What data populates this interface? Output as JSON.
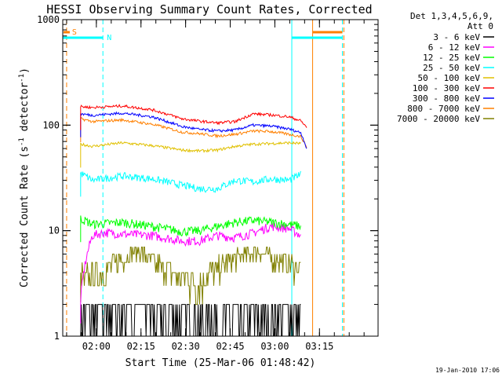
{
  "chart_data": {
    "type": "line",
    "title": "HESSI Observing Summary Count Rates, Corrected",
    "xlabel": "Start Time (25-Mar-06 01:48:42)",
    "ylabel": "Corrected Count Rate (s⁻¹ detector⁻¹)",
    "yscale": "log",
    "ylim": [
      1,
      1000
    ],
    "xlim_min": [
      0,
      106
    ],
    "y_ticks": [
      1,
      10,
      100,
      1000
    ],
    "y_tick_labels": [
      "1",
      "10",
      "100",
      "1000"
    ],
    "x_ticks": [
      "02:00",
      "02:15",
      "02:30",
      "02:45",
      "03:00",
      "03:15"
    ],
    "x_tick_min": [
      11.3,
      26.3,
      41.3,
      56.3,
      71.3,
      86.3
    ],
    "legend_header": [
      "Det 1,3,4,5,6,9,",
      "Att 0"
    ],
    "legend_position": "right",
    "series": [
      {
        "name": "3 - 6 keV",
        "color": "#000000",
        "min": [
          6,
          10,
          20,
          30,
          40,
          50,
          60,
          65,
          70,
          75,
          80
        ],
        "values": [
          1.3,
          1.6,
          1.5,
          1.7,
          1.3,
          1.2,
          1.2,
          1.6,
          1.5,
          1.6,
          1.4
        ]
      },
      {
        "name": "6 - 12 keV",
        "color": "#ff00ff",
        "min": [
          6,
          10,
          14,
          20,
          30,
          40,
          46,
          52,
          58,
          64,
          70,
          76,
          80
        ],
        "values": [
          2.2,
          9.0,
          9.6,
          9.3,
          9.0,
          8.0,
          8.0,
          9.0,
          8.6,
          9.5,
          11.0,
          10.5,
          9.0
        ]
      },
      {
        "name": "12 - 25 keV",
        "color": "#00ff00",
        "min": [
          6,
          10,
          20,
          30,
          40,
          46,
          52,
          58,
          64,
          70,
          76,
          80
        ],
        "values": [
          13.0,
          11.5,
          12.0,
          11.0,
          9.8,
          10.0,
          11.0,
          12.0,
          12.5,
          12.0,
          11.5,
          11.0
        ]
      },
      {
        "name": "25 - 50 keV",
        "color": "#00ffff",
        "min": [
          6,
          10,
          20,
          30,
          40,
          46,
          52,
          58,
          64,
          70,
          76,
          80
        ],
        "values": [
          35,
          30,
          33,
          31,
          27,
          25,
          25,
          30,
          29,
          31,
          30,
          34
        ]
      },
      {
        "name": "50 - 100 keV",
        "color": "#e0c000",
        "min": [
          6,
          10,
          20,
          30,
          40,
          46,
          52,
          58,
          64,
          70,
          76,
          80
        ],
        "values": [
          66,
          63,
          68,
          64,
          58,
          57,
          58,
          63,
          66,
          67,
          68,
          67
        ]
      },
      {
        "name": "100 - 300 keV",
        "color": "#ff0000",
        "min": [
          6,
          10,
          20,
          30,
          40,
          46,
          52,
          58,
          64,
          70,
          76,
          80,
          82
        ],
        "values": [
          150,
          147,
          152,
          140,
          115,
          109,
          105,
          108,
          128,
          125,
          120,
          110,
          95
        ]
      },
      {
        "name": "300 - 800 keV",
        "color": "#0000ff",
        "min": [
          6,
          10,
          20,
          30,
          40,
          46,
          52,
          58,
          64,
          70,
          76,
          80,
          82
        ],
        "values": [
          128,
          124,
          130,
          120,
          97,
          91,
          88,
          90,
          100,
          98,
          92,
          85,
          60
        ]
      },
      {
        "name": "800 - 7000 keV",
        "color": "#ff8000",
        "min": [
          6,
          10,
          20,
          30,
          40,
          46,
          52,
          58,
          64,
          70,
          76,
          80,
          82
        ],
        "values": [
          115,
          108,
          112,
          102,
          86,
          83,
          79,
          82,
          88,
          87,
          82,
          78,
          62
        ]
      },
      {
        "name": "7000 - 20000 keV",
        "color": "#808000",
        "min": [
          6,
          10,
          14,
          20,
          26,
          30,
          36,
          40,
          46,
          52,
          58,
          62,
          64,
          70,
          74,
          80
        ],
        "values": [
          3.5,
          3.6,
          4.2,
          5.5,
          6.5,
          5.0,
          4.2,
          3.4,
          3.3,
          4.3,
          5.5,
          6.0,
          6.5,
          5.5,
          5.0,
          4.5
        ]
      }
    ],
    "flag_markers": [
      {
        "label": "S",
        "min": [
          1.3,
          1.3
        ],
        "color": "#ff8000",
        "style": "dashed"
      },
      {
        "label": "N",
        "min": [
          0,
          13.5
        ],
        "color": "#00ffff",
        "style": "solid"
      },
      {
        "label": "",
        "min": [
          77,
          94
        ],
        "color": "#00ffff",
        "style": "solid"
      },
      {
        "label": "",
        "min": [
          84,
          94
        ],
        "color": "#ff8000",
        "style": "solid"
      }
    ],
    "vertical_lines": [
      {
        "min": 1.3,
        "color": "#ff8000",
        "style": "dashed"
      },
      {
        "min": 13.5,
        "color": "#00ffff",
        "style": "dashed"
      },
      {
        "min": 77,
        "color": "#00ffff",
        "style": "solid"
      },
      {
        "min": 84,
        "color": "#ff8000",
        "style": "solid"
      },
      {
        "min": 94,
        "color": "#00ffff",
        "style": "dashed"
      },
      {
        "min": 94.5,
        "color": "#ff8000",
        "style": "dashed"
      }
    ]
  },
  "footer": {
    "timestamp": "19-Jan-2010 17:06"
  }
}
